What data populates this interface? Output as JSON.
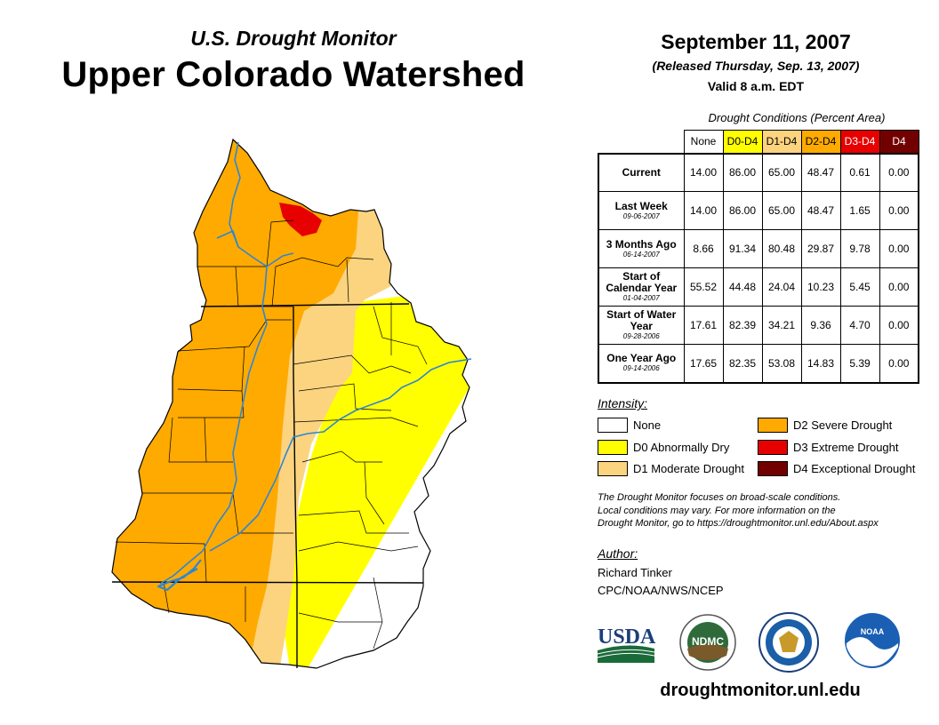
{
  "header": {
    "subtitle": "U.S. Drought Monitor",
    "title": "Upper Colorado Watershed",
    "date": "September 11, 2007",
    "released": "(Released Thursday, Sep. 13, 2007)",
    "valid": "Valid 8 a.m. EDT"
  },
  "table": {
    "caption": "Drought Conditions (Percent Area)",
    "columns": [
      {
        "label": "None",
        "color": "#ffffff",
        "text_color": "#000000"
      },
      {
        "label": "D0-D4",
        "color": "#ffff00",
        "text_color": "#000000"
      },
      {
        "label": "D1-D4",
        "color": "#fcd37f",
        "text_color": "#000000"
      },
      {
        "label": "D2-D4",
        "color": "#ffaa00",
        "text_color": "#000000"
      },
      {
        "label": "D3-D4",
        "color": "#e60000",
        "text_color": "#ffffff"
      },
      {
        "label": "D4",
        "color": "#730000",
        "text_color": "#ffffff"
      }
    ],
    "rows": [
      {
        "label": "Current",
        "date": "",
        "values": [
          "14.00",
          "86.00",
          "65.00",
          "48.47",
          "0.61",
          "0.00"
        ]
      },
      {
        "label": "Last Week",
        "date": "09-06-2007",
        "values": [
          "14.00",
          "86.00",
          "65.00",
          "48.47",
          "1.65",
          "0.00"
        ]
      },
      {
        "label": "3 Months Ago",
        "date": "06-14-2007",
        "values": [
          "8.66",
          "91.34",
          "80.48",
          "29.87",
          "9.78",
          "0.00"
        ]
      },
      {
        "label": "Start of Calendar Year",
        "date": "01-04-2007",
        "values": [
          "55.52",
          "44.48",
          "24.04",
          "10.23",
          "5.45",
          "0.00"
        ]
      },
      {
        "label": "Start of Water Year",
        "date": "09-28-2006",
        "values": [
          "17.61",
          "82.39",
          "34.21",
          "9.36",
          "4.70",
          "0.00"
        ]
      },
      {
        "label": "One Year Ago",
        "date": "09-14-2006",
        "values": [
          "17.65",
          "82.35",
          "53.08",
          "14.83",
          "5.39",
          "0.00"
        ]
      }
    ]
  },
  "legend": {
    "title": "Intensity:",
    "items": [
      {
        "label": "None",
        "color": "#ffffff"
      },
      {
        "label": "D0 Abnormally Dry",
        "color": "#ffff00"
      },
      {
        "label": "D1 Moderate Drought",
        "color": "#fcd37f"
      },
      {
        "label": "D2 Severe Drought",
        "color": "#ffaa00"
      },
      {
        "label": "D3 Extreme Drought",
        "color": "#e60000"
      },
      {
        "label": "D4 Exceptional Drought",
        "color": "#730000"
      }
    ]
  },
  "disclaimer": {
    "line1": "The Drought Monitor focuses on broad-scale conditions.",
    "line2": "Local conditions may vary. For more information on the",
    "line3": "Drought Monitor, go to https://droughtmonitor.unl.edu/About.aspx"
  },
  "author": {
    "label": "Author:",
    "name": "Richard Tinker",
    "org": "CPC/NOAA/NWS/NCEP"
  },
  "logos": {
    "usda": "USDA",
    "ndmc": "NDMC",
    "noaa": "NOAA"
  },
  "website": "droughtmonitor.unl.edu",
  "map": {
    "region": "Upper Colorado Watershed",
    "colors": {
      "none": "#ffffff",
      "d0": "#ffff00",
      "d1": "#fcd37f",
      "d2": "#ffaa00",
      "d3": "#e60000",
      "river": "#2e86d4",
      "boundary": "#000000"
    }
  }
}
